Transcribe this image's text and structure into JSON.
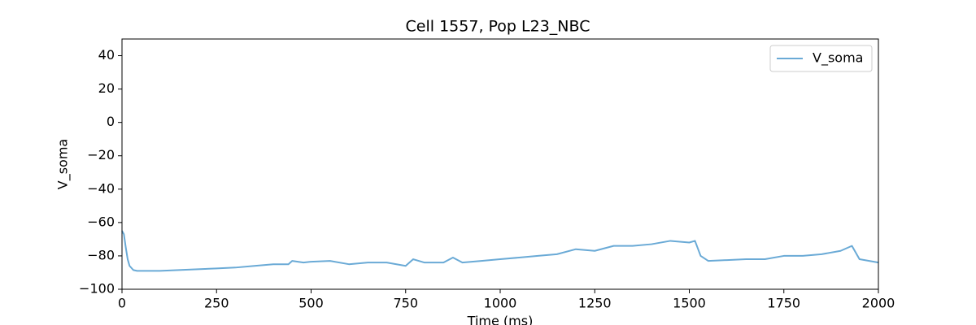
{
  "chart_data": {
    "type": "line",
    "title": "Cell 1557, Pop L23_NBC",
    "x_label": "Time (ms)",
    "y_label": "V_soma",
    "x": [
      0,
      5,
      10,
      15,
      20,
      30,
      40,
      60,
      100,
      150,
      200,
      250,
      300,
      350,
      400,
      440,
      450,
      480,
      500,
      550,
      600,
      650,
      700,
      750,
      770,
      800,
      850,
      875,
      900,
      950,
      1000,
      1050,
      1100,
      1150,
      1200,
      1250,
      1300,
      1350,
      1400,
      1450,
      1500,
      1515,
      1530,
      1550,
      1600,
      1650,
      1700,
      1750,
      1800,
      1850,
      1900,
      1930,
      1950,
      2000
    ],
    "series": [
      {
        "name": "V_soma",
        "color": "#6aaad6",
        "values": [
          -65,
          -67,
          -75,
          -82,
          -86,
          -88.5,
          -89,
          -89,
          -89,
          -88.5,
          -88,
          -87.5,
          -87,
          -86,
          -85,
          -85,
          -83,
          -84,
          -83.5,
          -83,
          -85,
          -84,
          -84,
          -86,
          -82,
          -84,
          -84,
          -81,
          -84,
          -83,
          -82,
          -81,
          -80,
          -79,
          -76,
          -77,
          -74,
          -74,
          -73,
          -71,
          -72,
          -71,
          -80,
          -83,
          -82.5,
          -82,
          -82,
          -80,
          -80,
          -79,
          -77,
          -74,
          -82,
          -84
        ]
      }
    ],
    "xlim": [
      0,
      2000
    ],
    "xticks": [
      0,
      250,
      500,
      750,
      1000,
      1250,
      1500,
      1750,
      2000
    ],
    "ylim": [
      -100,
      50
    ],
    "yticks": [
      {
        "value": -100,
        "label": "−100"
      },
      {
        "value": -80,
        "label": "−80"
      },
      {
        "value": -60,
        "label": "−60"
      },
      {
        "value": -40,
        "label": "−40"
      },
      {
        "value": -20,
        "label": "−20"
      },
      0,
      20,
      40
    ],
    "legend": "upper right"
  }
}
